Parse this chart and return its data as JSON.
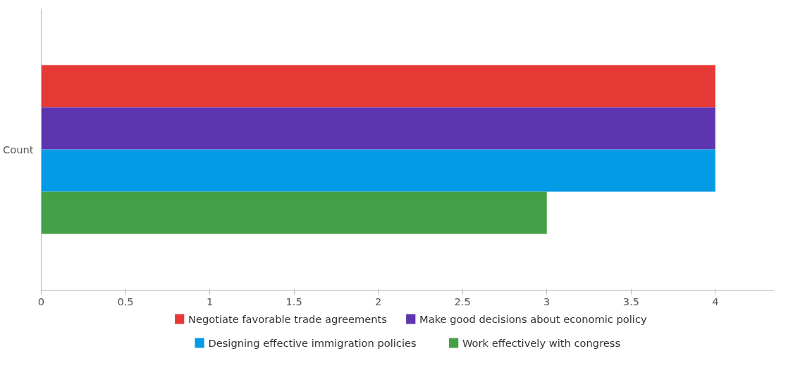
{
  "chart_data": {
    "type": "bar",
    "orientation": "horizontal",
    "categories": [
      "Count"
    ],
    "series": [
      {
        "name": "Negotiate favorable trade agreements",
        "color": "#e53935",
        "values": [
          4
        ]
      },
      {
        "name": "Make good decisions about economic policy",
        "color": "#5e35b1",
        "values": [
          4
        ]
      },
      {
        "name": "Designing effective immigration policies",
        "color": "#039be5",
        "values": [
          4
        ]
      },
      {
        "name": "Work effectively with congress",
        "color": "#43a047",
        "values": [
          3
        ]
      }
    ],
    "xlim": [
      0,
      4.35
    ],
    "xticks": [
      0,
      0.5,
      1,
      1.5,
      2,
      2.5,
      3,
      3.5,
      4
    ],
    "grid": false,
    "legend": "bottom"
  }
}
